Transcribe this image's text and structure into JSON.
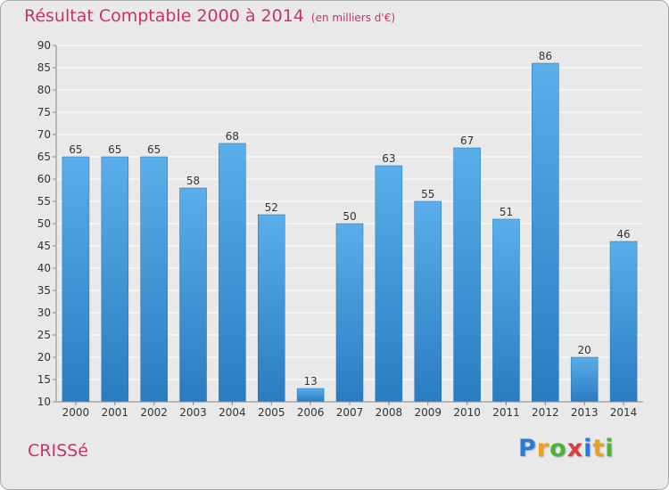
{
  "title": "Résultat Comptable 2000 à 2014",
  "subtitle": "(en milliers d'€)",
  "commune": "CRISSé",
  "brand": {
    "letters": [
      "P",
      "r",
      "o",
      "x",
      "i",
      "t",
      "i"
    ],
    "colors": [
      "#2a7bd6",
      "#e8a21c",
      "#4bb33a",
      "#e23a3a",
      "#2a7bd6",
      "#e8a21c",
      "#4bb33a"
    ]
  },
  "colors": {
    "bar_top": "#5aaeea",
    "bar_bottom": "#2a7cc0",
    "title": "#c8336a",
    "grid": "#ffffff",
    "background": "#e9e9e9"
  },
  "chart_data": {
    "type": "bar",
    "title": "Résultat Comptable 2000 à 2014",
    "subtitle": "(en milliers d'€)",
    "xlabel": "",
    "ylabel": "",
    "categories": [
      "2000",
      "2001",
      "2002",
      "2003",
      "2004",
      "2005",
      "2006",
      "2007",
      "2008",
      "2009",
      "2010",
      "2011",
      "2012",
      "2013",
      "2014"
    ],
    "values": [
      65,
      65,
      65,
      58,
      68,
      52,
      13,
      50,
      63,
      55,
      67,
      51,
      86,
      20,
      46
    ],
    "ylim": [
      10,
      90
    ],
    "yticks": [
      10,
      15,
      20,
      25,
      30,
      35,
      40,
      45,
      50,
      55,
      60,
      65,
      70,
      75,
      80,
      85,
      90
    ],
    "grid": true
  }
}
